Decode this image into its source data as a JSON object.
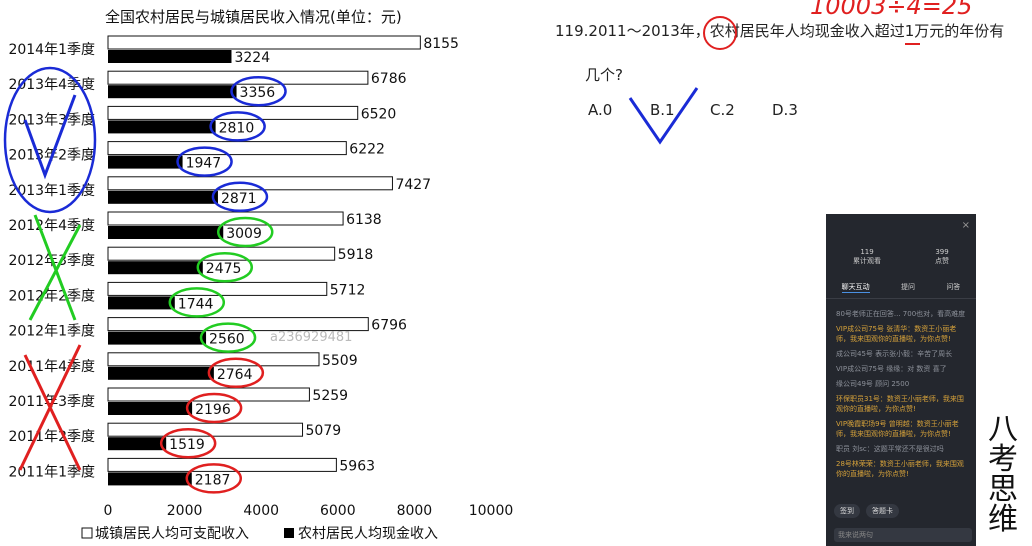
{
  "chart_data": {
    "type": "bar",
    "orientation": "horizontal",
    "title": "全国农村居民与城镇居民收入情况(单位：元)",
    "categories": [
      "2014年1季度",
      "2013年4季度",
      "2013年3季度",
      "2013年2季度",
      "2013年1季度",
      "2012年4季度",
      "2012年3季度",
      "2012年2季度",
      "2012年1季度",
      "2011年4季度",
      "2011年3季度",
      "2011年2季度",
      "2011年1季度"
    ],
    "series": [
      {
        "name": "城镇居民人均可支配收入",
        "values": [
          8155,
          6786,
          6520,
          6222,
          7427,
          6138,
          5918,
          5712,
          6796,
          5509,
          5259,
          5079,
          5963
        ],
        "color": "#ffffff"
      },
      {
        "name": "农村居民人均现金收入",
        "values": [
          3224,
          3356,
          2810,
          1947,
          2871,
          3009,
          2475,
          1744,
          2560,
          2764,
          2196,
          1519,
          2187
        ],
        "color": "#000000"
      }
    ],
    "xlim": [
      0,
      10000
    ],
    "xticks": [
      "0",
      "2000",
      "4000",
      "6000",
      "8000",
      "10000"
    ],
    "legend_position": "bottom",
    "annotation_circles": [
      {
        "category": "2013年4季度",
        "color": "#1a2bd6"
      },
      {
        "category": "2013年3季度",
        "color": "#1a2bd6"
      },
      {
        "category": "2013年2季度",
        "color": "#1a2bd6"
      },
      {
        "category": "2013年1季度",
        "color": "#1a2bd6"
      },
      {
        "category": "2012年4季度",
        "color": "#22cc22"
      },
      {
        "category": "2012年3季度",
        "color": "#22cc22"
      },
      {
        "category": "2012年2季度",
        "color": "#22cc22"
      },
      {
        "category": "2012年1季度",
        "color": "#22cc22"
      },
      {
        "category": "2011年4季度",
        "color": "#e02020"
      },
      {
        "category": "2011年3季度",
        "color": "#e02020"
      },
      {
        "category": "2011年2季度",
        "color": "#e02020"
      },
      {
        "category": "2011年1季度",
        "color": "#e02020"
      }
    ]
  },
  "watermark": "a236929481",
  "question": {
    "line1": "119.2011～2013年，农村居民年人均现金收入超过1万元的年份有",
    "line2": "几个?",
    "options": [
      "A.0",
      "B.1",
      "C.2",
      "D.3"
    ],
    "top_handwriting": "10003÷4=25"
  },
  "panel": {
    "stats": [
      {
        "value": "119",
        "label": "累计观看"
      },
      {
        "value": "399",
        "label": "点赞"
      }
    ],
    "tabs": [
      "聊天互动",
      "提问",
      "问答"
    ],
    "messages": [
      {
        "text": "80号老师正在回答...  700也对，看高难度",
        "style": "gray"
      },
      {
        "text": "VIP成公司75号 张清华：数资王小丽老师，我来围观你的直播啦，为你点赞!",
        "style": "gold"
      },
      {
        "text": "成公司45号 表示张小毅：辛苦了周长",
        "style": "gray"
      },
      {
        "text": "VIP成公司75号 缘缘：对 数资 喜了",
        "style": "gray"
      },
      {
        "text": "缘公司49号 顾问 2500",
        "style": "gray"
      },
      {
        "text": "环保职员31号：数资王小丽老师，我来围观你的直播啦，为你点赞!",
        "style": "gold"
      },
      {
        "text": "VIP晚霞职场9号 曾明越：数资王小丽老师，我来围观你的直播啦，为你点赞!",
        "style": "gold"
      },
      {
        "text": "职员 刘sc：这题平常还不是很过吗",
        "style": "gray"
      },
      {
        "text": "28号林荣荣：数资王小丽老师，我来围观你的直播啦，为你点赞!",
        "style": "gold"
      }
    ],
    "buttons": [
      "签到",
      "答题卡"
    ],
    "input_placeholder": "我来说两句",
    "close": "×"
  },
  "logo_text": "八考思维"
}
